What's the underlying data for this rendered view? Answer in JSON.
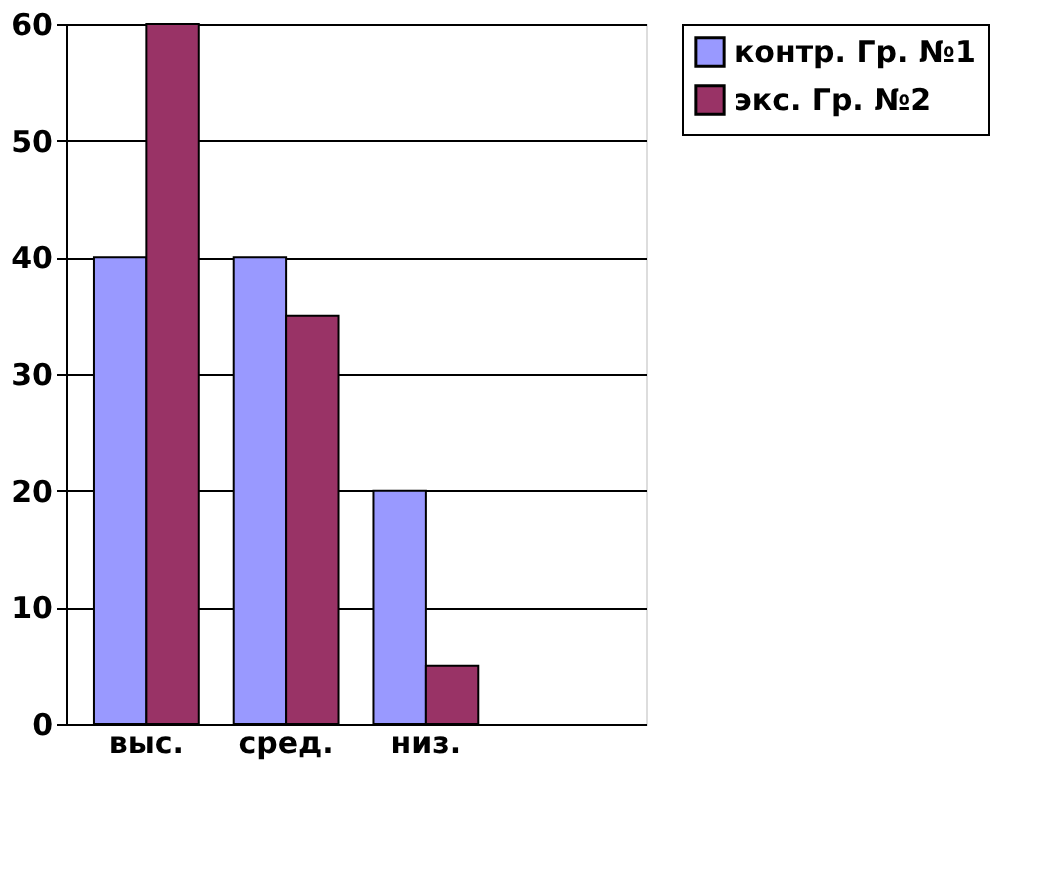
{
  "chart_data": {
    "type": "bar",
    "categories": [
      "выс.",
      "сред.",
      "низ.",
      null
    ],
    "series": [
      {
        "name": "контр. Гр. №1",
        "color": "#9999ff",
        "values": [
          40,
          40,
          20,
          null
        ]
      },
      {
        "name": "экс. Гр. №2",
        "color": "#993366",
        "values": [
          60,
          35,
          5,
          null
        ]
      }
    ],
    "ylim": [
      0,
      60
    ],
    "yticks": [
      0,
      10,
      20,
      30,
      40,
      50,
      60
    ],
    "grid": "y",
    "legend": "right"
  }
}
